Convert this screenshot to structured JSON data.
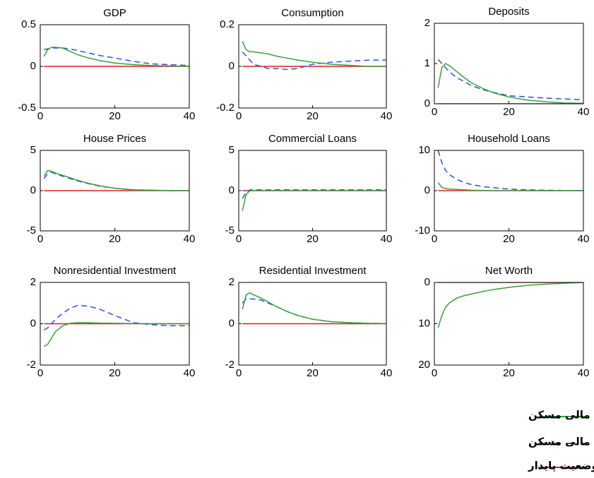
{
  "chart_data": [
    {
      "type": "line",
      "title": "GDP",
      "x": [
        1,
        2,
        3,
        4,
        6,
        8,
        10,
        13,
        16,
        20,
        25,
        30,
        35,
        40
      ],
      "xlim": [
        0,
        40
      ],
      "xticks": [
        0,
        20,
        40
      ],
      "ylim": [
        -0.5,
        0.5
      ],
      "yticks": [
        -0.5,
        0,
        0.5
      ],
      "series": [
        {
          "name": "مدل با وجود تأمین مالی مسکن",
          "color": "#3aa03a",
          "dash": false,
          "values": [
            0.12,
            0.2,
            0.23,
            0.23,
            0.22,
            0.18,
            0.14,
            0.1,
            0.07,
            0.04,
            0.02,
            0.01,
            0.005,
            0
          ]
        },
        {
          "name": "مدل بدون وجود تأمین مالی مسکن",
          "color": "#3050e0",
          "dash": true,
          "values": [
            0.2,
            0.21,
            0.22,
            0.22,
            0.22,
            0.21,
            0.19,
            0.16,
            0.13,
            0.1,
            0.06,
            0.03,
            0.02,
            0.01
          ]
        },
        {
          "name": "وضعیت پایدار",
          "color": "#e02020",
          "dash": false,
          "values": [
            0,
            0,
            0,
            0,
            0,
            0,
            0,
            0,
            0,
            0,
            0,
            0,
            0,
            0
          ]
        }
      ]
    },
    {
      "type": "line",
      "title": "Consumption",
      "x": [
        1,
        2,
        3,
        4,
        6,
        8,
        10,
        13,
        16,
        20,
        25,
        30,
        35,
        40
      ],
      "xlim": [
        0,
        40
      ],
      "xticks": [
        0,
        20,
        40
      ],
      "ylim": [
        -0.2,
        0.2
      ],
      "yticks": [
        -0.2,
        0,
        0.2
      ],
      "series": [
        {
          "color": "#3aa03a",
          "dash": false,
          "values": [
            0.12,
            0.08,
            0.07,
            0.07,
            0.065,
            0.06,
            0.05,
            0.04,
            0.03,
            0.02,
            0.01,
            0.005,
            0,
            0
          ]
        },
        {
          "color": "#3050e0",
          "dash": true,
          "values": [
            0.07,
            0.05,
            0.03,
            0.01,
            0,
            -0.01,
            -0.01,
            -0.015,
            -0.01,
            0.01,
            0.02,
            0.025,
            0.03,
            0.03
          ]
        },
        {
          "color": "#e02020",
          "dash": false,
          "values": [
            0,
            0,
            0,
            0,
            0,
            0,
            0,
            0,
            0,
            0,
            0,
            0,
            0,
            0
          ]
        }
      ]
    },
    {
      "type": "line",
      "title": "Deposits",
      "x": [
        1,
        2,
        3,
        4,
        6,
        8,
        10,
        13,
        16,
        20,
        25,
        30,
        35,
        40
      ],
      "xlim": [
        0,
        40
      ],
      "xticks": [
        0,
        20,
        40
      ],
      "ylim": [
        0,
        2
      ],
      "yticks": [
        0,
        1,
        2
      ],
      "series": [
        {
          "color": "#3aa03a",
          "dash": false,
          "values": [
            0.4,
            0.9,
            1.0,
            0.95,
            0.8,
            0.65,
            0.52,
            0.38,
            0.27,
            0.17,
            0.09,
            0.05,
            0.02,
            0.01
          ]
        },
        {
          "color": "#3050e0",
          "dash": true,
          "values": [
            1.1,
            1.0,
            0.9,
            0.8,
            0.65,
            0.55,
            0.45,
            0.35,
            0.28,
            0.2,
            0.17,
            0.14,
            0.12,
            0.1
          ]
        },
        {
          "color": "#e02020",
          "dash": false,
          "values": [
            0,
            0,
            0,
            0,
            0,
            0,
            0,
            0,
            0,
            0,
            0,
            0,
            0,
            0
          ]
        }
      ]
    },
    {
      "type": "line",
      "title": "House Prices",
      "x": [
        1,
        2,
        3,
        4,
        6,
        8,
        10,
        13,
        16,
        20,
        25,
        30,
        35,
        40
      ],
      "xlim": [
        0,
        40
      ],
      "xticks": [
        0,
        20,
        40
      ],
      "ylim": [
        -5,
        5
      ],
      "yticks": [
        -5,
        0,
        5
      ],
      "series": [
        {
          "color": "#3aa03a",
          "dash": false,
          "values": [
            1.8,
            2.5,
            2.4,
            2.2,
            1.9,
            1.6,
            1.3,
            0.9,
            0.6,
            0.3,
            0.1,
            0.05,
            0,
            0
          ]
        },
        {
          "color": "#3050e0",
          "dash": true,
          "values": [
            1.5,
            2.1,
            2.3,
            2.1,
            1.8,
            1.5,
            1.2,
            0.85,
            0.55,
            0.3,
            0.1,
            0.05,
            0,
            0
          ]
        },
        {
          "color": "#e02020",
          "dash": false,
          "values": [
            0,
            0,
            0,
            0,
            0,
            0,
            0,
            0,
            0,
            0,
            0,
            0,
            0,
            0
          ]
        }
      ]
    },
    {
      "type": "line",
      "title": "Commercial Loans",
      "x": [
        1,
        2,
        3,
        4,
        6,
        8,
        10,
        13,
        16,
        20,
        25,
        30,
        35,
        40
      ],
      "xlim": [
        0,
        40
      ],
      "xticks": [
        0,
        20,
        40
      ],
      "ylim": [
        -5,
        5
      ],
      "yticks": [
        -5,
        0,
        5
      ],
      "series": [
        {
          "color": "#3aa03a",
          "dash": false,
          "values": [
            -2.5,
            -0.5,
            0,
            0,
            0,
            0,
            0,
            0,
            0,
            0,
            0,
            0,
            0,
            0
          ]
        },
        {
          "color": "#3050e0",
          "dash": true,
          "values": [
            -1.0,
            -0.2,
            0.1,
            0.1,
            0.1,
            0.1,
            0.1,
            0.1,
            0.1,
            0.1,
            0.1,
            0.1,
            0.1,
            0.1
          ]
        },
        {
          "color": "#e02020",
          "dash": false,
          "values": [
            0,
            0,
            0,
            0,
            0,
            0,
            0,
            0,
            0,
            0,
            0,
            0,
            0,
            0
          ]
        }
      ]
    },
    {
      "type": "line",
      "title": "Household Loans",
      "x": [
        1,
        2,
        3,
        4,
        6,
        8,
        10,
        13,
        16,
        20,
        25,
        30,
        35,
        40
      ],
      "xlim": [
        0,
        40
      ],
      "xticks": [
        0,
        20,
        40
      ],
      "ylim": [
        -10,
        10
      ],
      "yticks": [
        -10,
        0,
        10
      ],
      "series": [
        {
          "color": "#3aa03a",
          "dash": false,
          "values": [
            2,
            0.8,
            0.5,
            0.4,
            0.3,
            0.2,
            0.1,
            0.05,
            0,
            0,
            0,
            0,
            0,
            0
          ]
        },
        {
          "color": "#3050e0",
          "dash": true,
          "values": [
            10,
            7,
            5,
            4,
            2.8,
            2,
            1.5,
            1,
            0.7,
            0.4,
            0.2,
            0.1,
            0.05,
            0
          ]
        },
        {
          "color": "#e02020",
          "dash": false,
          "values": [
            0,
            0,
            0,
            0,
            0,
            0,
            0,
            0,
            0,
            0,
            0,
            0,
            0,
            0
          ]
        }
      ]
    },
    {
      "type": "line",
      "title": "Nonresidential Investment",
      "x": [
        1,
        2,
        3,
        4,
        6,
        8,
        10,
        13,
        16,
        20,
        25,
        30,
        35,
        40
      ],
      "xlim": [
        0,
        40
      ],
      "xticks": [
        0,
        20,
        40
      ],
      "ylim": [
        -2,
        2
      ],
      "yticks": [
        -2,
        0,
        2
      ],
      "series": [
        {
          "color": "#3aa03a",
          "dash": false,
          "values": [
            -1.1,
            -1.0,
            -0.7,
            -0.4,
            -0.1,
            0.02,
            0.05,
            0.05,
            0.03,
            0.02,
            0.01,
            0,
            0,
            0
          ]
        },
        {
          "color": "#3050e0",
          "dash": true,
          "values": [
            -0.3,
            -0.2,
            0,
            0.2,
            0.5,
            0.75,
            0.88,
            0.85,
            0.7,
            0.4,
            0.05,
            -0.05,
            -0.1,
            -0.1
          ]
        },
        {
          "color": "#e02020",
          "dash": false,
          "values": [
            0,
            0,
            0,
            0,
            0,
            0,
            0,
            0,
            0,
            0,
            0,
            0,
            0,
            0
          ]
        }
      ]
    },
    {
      "type": "line",
      "title": "Residential Investment",
      "x": [
        1,
        2,
        3,
        4,
        6,
        8,
        10,
        13,
        16,
        20,
        25,
        30,
        35,
        40
      ],
      "xlim": [
        0,
        40
      ],
      "xticks": [
        0,
        20,
        40
      ],
      "ylim": [
        -2,
        2
      ],
      "yticks": [
        -2,
        0,
        2
      ],
      "series": [
        {
          "color": "#3aa03a",
          "dash": false,
          "values": [
            0.7,
            1.4,
            1.5,
            1.4,
            1.25,
            1.05,
            0.85,
            0.6,
            0.4,
            0.22,
            0.1,
            0.05,
            0.02,
            0.01
          ]
        },
        {
          "color": "#3050e0",
          "dash": true,
          "values": [
            1.0,
            1.2,
            1.2,
            1.2,
            1.15,
            1.0,
            0.85,
            0.6,
            0.4,
            0.22,
            0.1,
            0.05,
            0.02,
            0.01
          ]
        },
        {
          "color": "#e02020",
          "dash": false,
          "values": [
            0,
            0,
            0,
            0,
            0,
            0,
            0,
            0,
            0,
            0,
            0,
            0,
            0,
            0
          ]
        }
      ]
    },
    {
      "type": "line",
      "title": "Net Worth",
      "x": [
        1,
        2,
        3,
        4,
        6,
        8,
        10,
        13,
        16,
        20,
        25,
        30,
        35,
        40
      ],
      "xlim": [
        0,
        40
      ],
      "xticks": [
        0,
        20,
        40
      ],
      "ylim": [
        20,
        0
      ],
      "yticks": [
        0,
        10,
        20
      ],
      "series": [
        {
          "color": "#3aa03a",
          "dash": false,
          "values": [
            11,
            8,
            6,
            5,
            3.8,
            3.2,
            2.8,
            2.2,
            1.7,
            1.2,
            0.7,
            0.4,
            0.2,
            0
          ]
        },
        {
          "color": "#e02020",
          "dash": false,
          "values": [
            0,
            0,
            0,
            0,
            0,
            0,
            0,
            0,
            0,
            0,
            0,
            0,
            0,
            0
          ]
        }
      ]
    }
  ]
}
